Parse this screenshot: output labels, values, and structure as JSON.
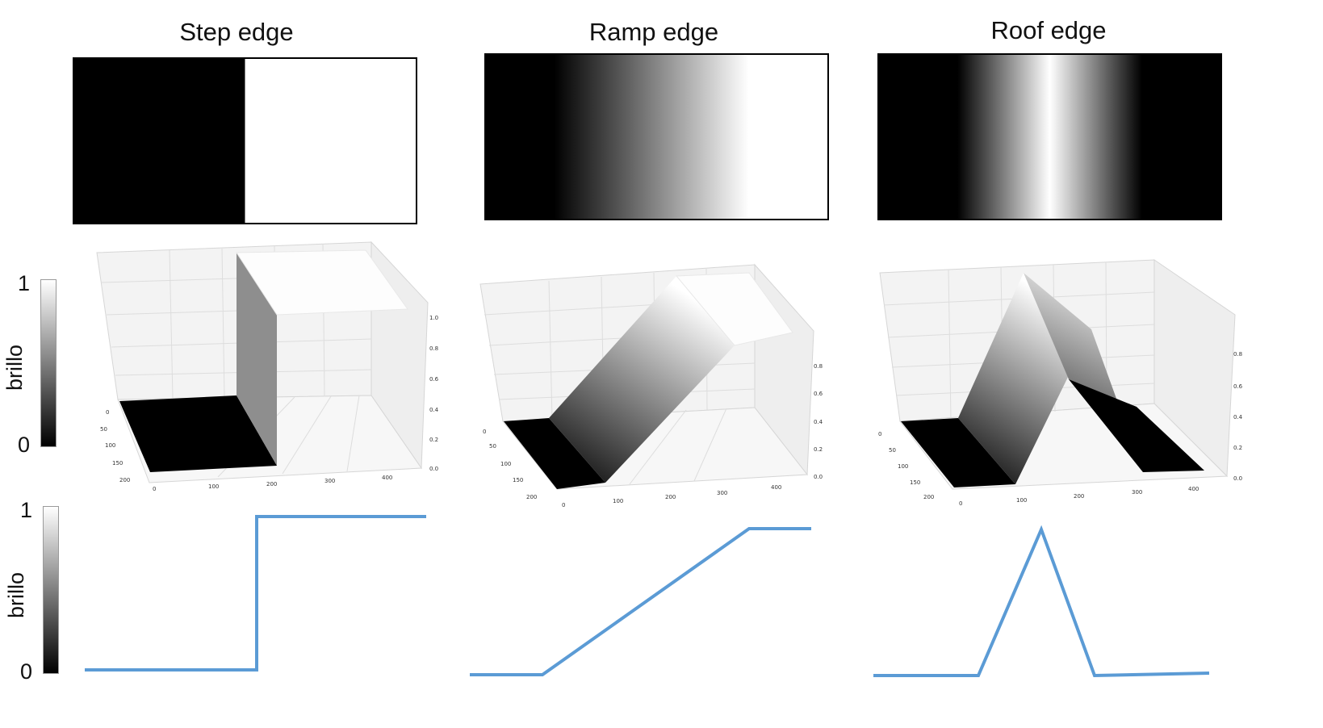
{
  "titles": {
    "step": "Step edge",
    "ramp": "Ramp edge",
    "roof": "Roof edge"
  },
  "colorbar": {
    "top_label": "1",
    "bottom_label": "0",
    "axis_label": "brillo"
  },
  "axis_ticks": {
    "step": {
      "x": [
        "0",
        "100",
        "200",
        "300",
        "400"
      ],
      "y": [
        "0",
        "50",
        "100",
        "150",
        "200"
      ],
      "z": [
        "0.0",
        "0.2",
        "0.4",
        "0.6",
        "0.8",
        "1.0"
      ]
    },
    "ramp": {
      "x": [
        "0",
        "100",
        "200",
        "300",
        "400"
      ],
      "y": [
        "0",
        "50",
        "100",
        "150",
        "200"
      ],
      "z": [
        "0.0",
        "0.2",
        "0.4",
        "0.6",
        "0.8"
      ]
    },
    "roof": {
      "x": [
        "0",
        "100",
        "200",
        "300",
        "400"
      ],
      "y": [
        "0",
        "50",
        "100",
        "150",
        "200"
      ],
      "z": [
        "0.0",
        "0.2",
        "0.4",
        "0.6",
        "0.8"
      ]
    }
  },
  "colors": {
    "profile_line": "#5b9bd5",
    "surface_dark": "#000000",
    "surface_light": "#ffffff",
    "pane": "#f2f2f2",
    "grid": "#d6d6d6"
  }
}
